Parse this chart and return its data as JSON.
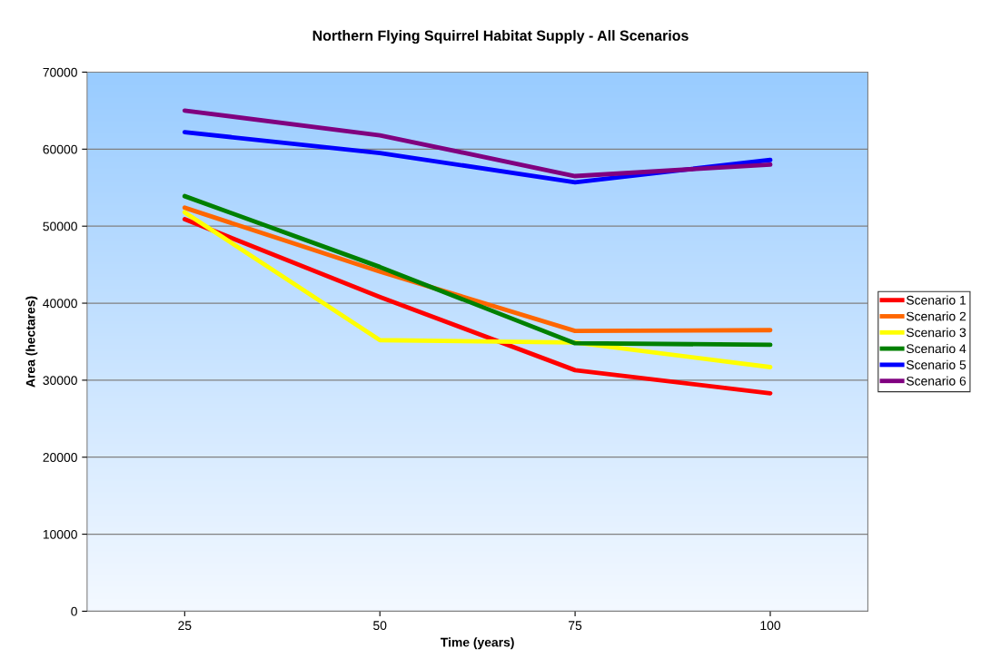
{
  "chart_data": {
    "type": "line",
    "title": "Northern Flying Squirrel Habitat Supply - All Scenarios",
    "xlabel": "Time (years)",
    "ylabel": "Area (hectares)",
    "categories": [
      "25",
      "50",
      "75",
      "100"
    ],
    "series": [
      {
        "name": "Scenario 1",
        "color": "#ff0000",
        "values": [
          50900,
          40800,
          31300,
          28300
        ]
      },
      {
        "name": "Scenario 2",
        "color": "#ff6600",
        "values": [
          52400,
          44100,
          36400,
          36500
        ]
      },
      {
        "name": "Scenario 3",
        "color": "#ffff00",
        "values": [
          51800,
          35200,
          34900,
          31700
        ]
      },
      {
        "name": "Scenario 4",
        "color": "#008000",
        "values": [
          53900,
          44700,
          34800,
          34600
        ]
      },
      {
        "name": "Scenario 5",
        "color": "#0000ff",
        "values": [
          62200,
          59500,
          55700,
          58600
        ]
      },
      {
        "name": "Scenario 6",
        "color": "#800080",
        "values": [
          65000,
          61800,
          56500,
          58000
        ]
      }
    ],
    "ylim": [
      0,
      70000
    ],
    "yticks": [
      0,
      10000,
      20000,
      30000,
      40000,
      50000,
      60000,
      70000
    ],
    "grid": "y",
    "legend": "right",
    "marker": "none",
    "line_style": "solid"
  }
}
